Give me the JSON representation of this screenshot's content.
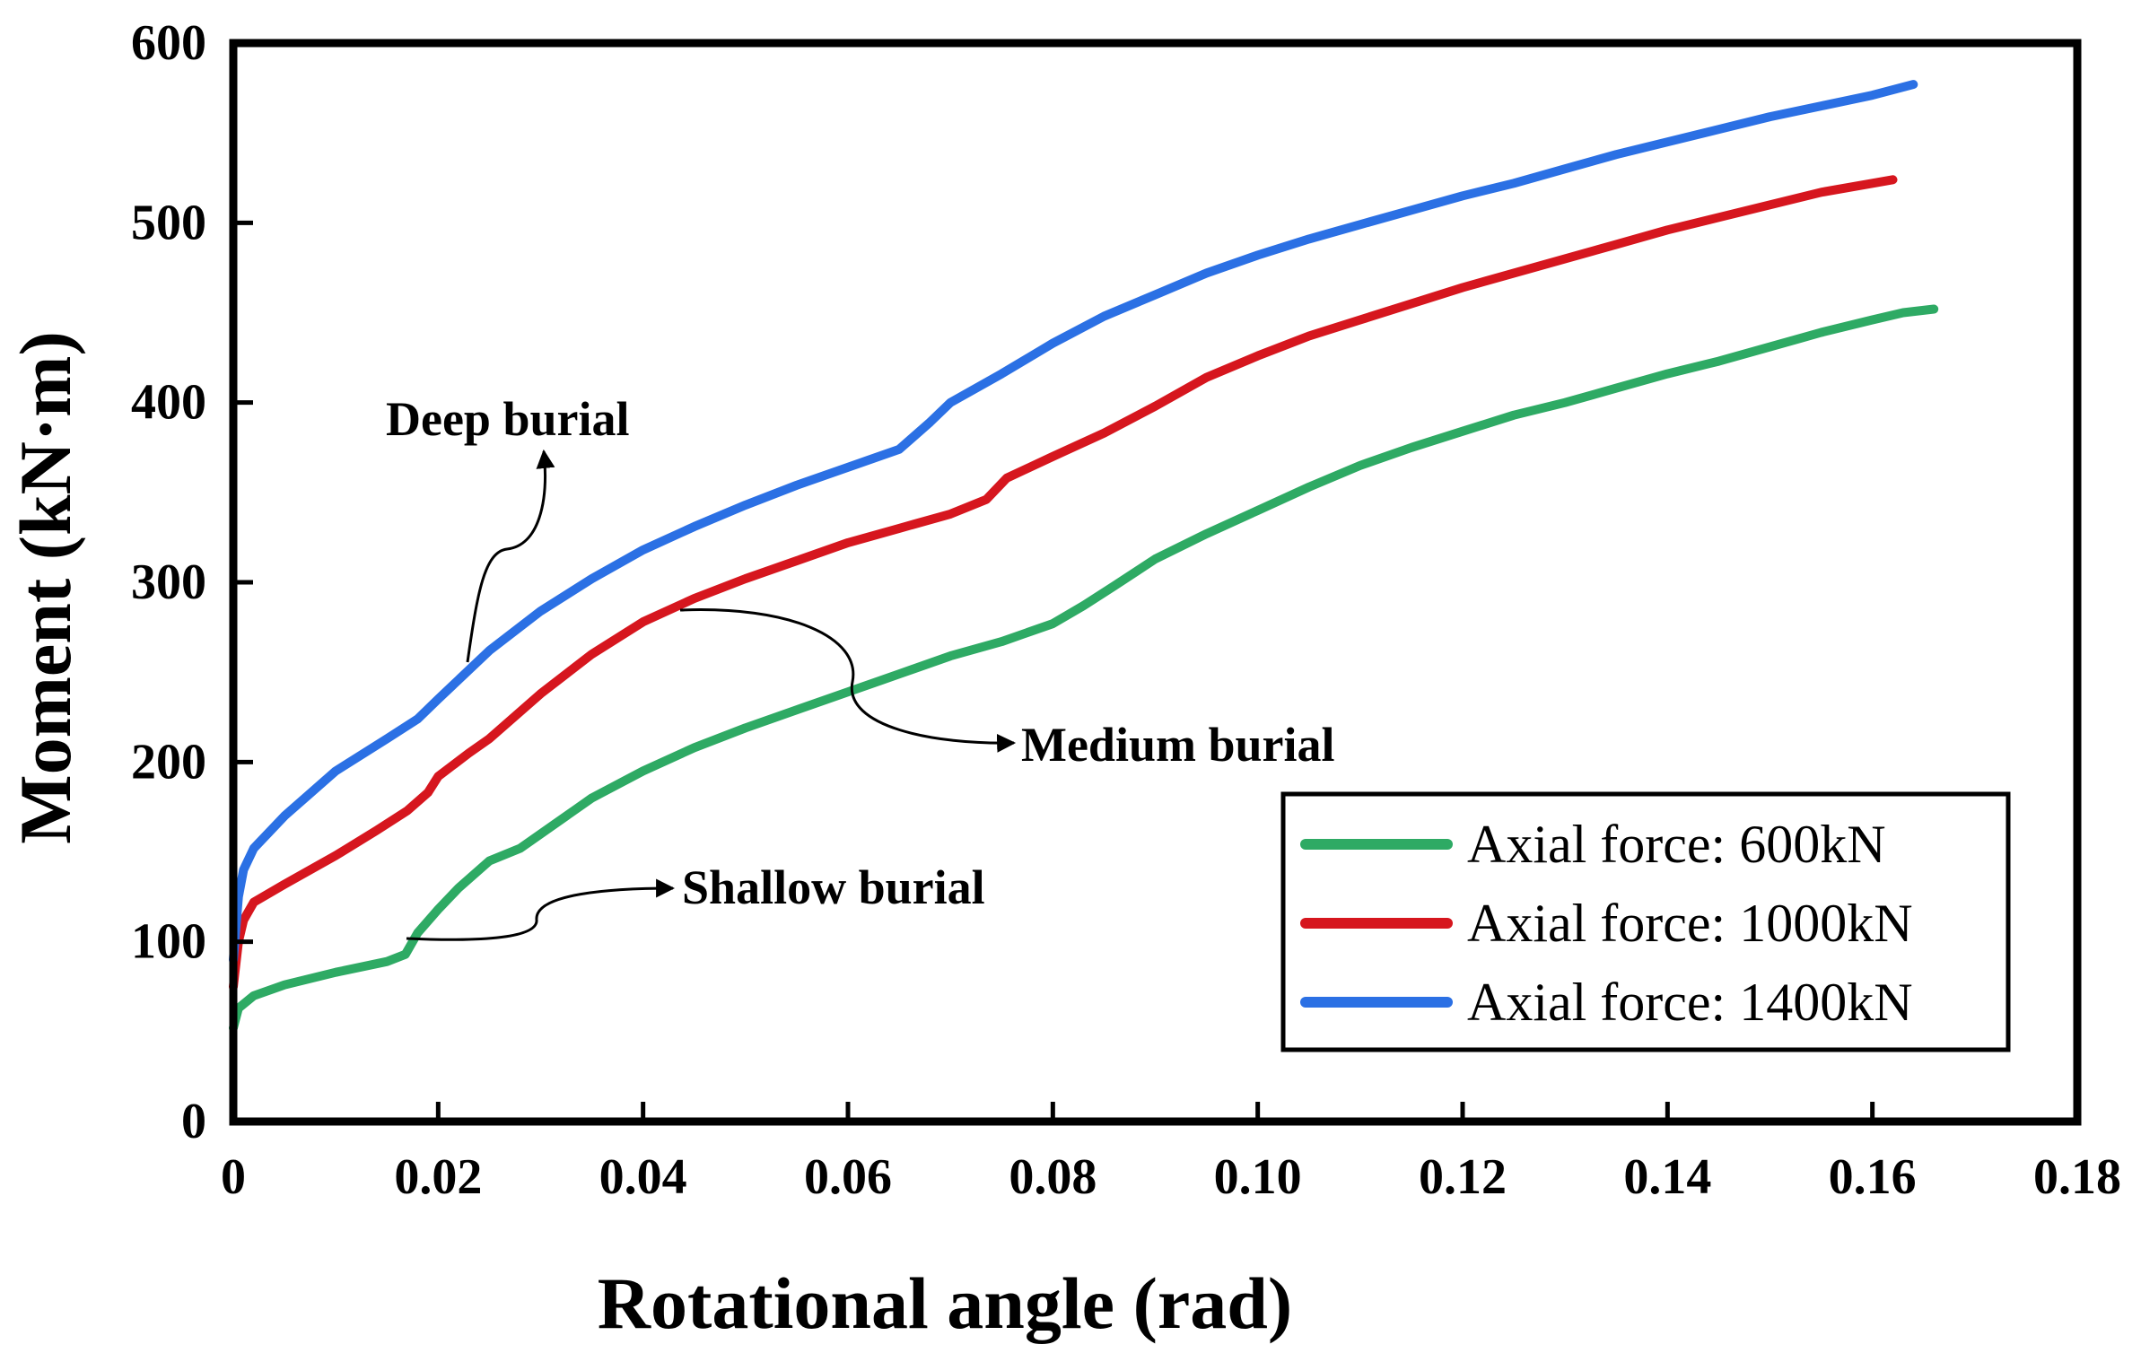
{
  "chart_data": {
    "type": "line",
    "title": "",
    "xlabel": "Rotational angle (rad)",
    "ylabel": "Moment (kN·m)",
    "xlim": [
      0,
      0.18
    ],
    "ylim": [
      0,
      600
    ],
    "xticks": [
      0,
      0.02,
      0.04,
      0.06,
      0.08,
      0.1,
      0.12,
      0.14,
      0.16,
      0.18
    ],
    "xtick_labels": [
      "0",
      "0.02",
      "0.04",
      "0.06",
      "0.08",
      "0.10",
      "0.12",
      "0.14",
      "0.16",
      "0.18"
    ],
    "yticks": [
      0,
      100,
      200,
      300,
      400,
      500,
      600
    ],
    "ytick_labels": [
      "0",
      "100",
      "200",
      "300",
      "400",
      "500",
      "600"
    ],
    "grid": false,
    "legend_position": "bottom-right",
    "series": [
      {
        "name": "Axial force: 600kN",
        "color": "#2EAA64",
        "x": [
          0,
          0.0005,
          0.002,
          0.005,
          0.01,
          0.015,
          0.0168,
          0.018,
          0.02,
          0.022,
          0.025,
          0.028,
          0.03,
          0.035,
          0.04,
          0.045,
          0.05,
          0.055,
          0.06,
          0.065,
          0.07,
          0.075,
          0.08,
          0.083,
          0.086,
          0.09,
          0.095,
          0.1,
          0.105,
          0.11,
          0.115,
          0.12,
          0.125,
          0.13,
          0.135,
          0.14,
          0.145,
          0.15,
          0.155,
          0.16,
          0.163,
          0.166
        ],
        "y": [
          52,
          63,
          70,
          76,
          83,
          89,
          93,
          105,
          118,
          130,
          145,
          152,
          160,
          180,
          195,
          208,
          219,
          229,
          239,
          249,
          259,
          267,
          277,
          287,
          298,
          313,
          327,
          340,
          353,
          365,
          375,
          384,
          393,
          400,
          408,
          416,
          423,
          431,
          439,
          446,
          450,
          452
        ]
      },
      {
        "name": "Axial force: 1000kN",
        "color": "#D6161E",
        "x": [
          0,
          0.0005,
          0.001,
          0.002,
          0.005,
          0.01,
          0.014,
          0.017,
          0.019,
          0.02,
          0.023,
          0.025,
          0.03,
          0.035,
          0.04,
          0.045,
          0.05,
          0.055,
          0.06,
          0.065,
          0.07,
          0.0735,
          0.0755,
          0.08,
          0.085,
          0.09,
          0.095,
          0.1,
          0.105,
          0.11,
          0.115,
          0.12,
          0.125,
          0.13,
          0.135,
          0.14,
          0.145,
          0.15,
          0.155,
          0.16,
          0.162
        ],
        "y": [
          75,
          100,
          112,
          122,
          132,
          148,
          162,
          173,
          183,
          192,
          205,
          213,
          238,
          260,
          278,
          291,
          302,
          312,
          322,
          330,
          338,
          346,
          358,
          370,
          383,
          398,
          414,
          426,
          437,
          446,
          455,
          464,
          472,
          480,
          488,
          496,
          503,
          510,
          517,
          522,
          524
        ]
      },
      {
        "name": "Axial force: 1400kN",
        "color": "#2B70E4",
        "x": [
          0,
          0.0005,
          0.001,
          0.002,
          0.005,
          0.01,
          0.015,
          0.018,
          0.02,
          0.025,
          0.03,
          0.035,
          0.04,
          0.045,
          0.05,
          0.055,
          0.06,
          0.065,
          0.068,
          0.07,
          0.075,
          0.08,
          0.085,
          0.09,
          0.095,
          0.1,
          0.105,
          0.11,
          0.115,
          0.12,
          0.125,
          0.13,
          0.135,
          0.14,
          0.145,
          0.15,
          0.155,
          0.16,
          0.164
        ],
        "y": [
          90,
          125,
          140,
          152,
          170,
          195,
          213,
          224,
          235,
          262,
          284,
          302,
          318,
          331,
          343,
          354,
          364,
          374,
          389,
          400,
          416,
          433,
          448,
          460,
          472,
          482,
          491,
          499,
          507,
          515,
          522,
          530,
          538,
          545,
          552,
          559,
          565,
          571,
          577
        ]
      }
    ],
    "annotations": [
      {
        "text": "Deep burial",
        "target_series": "Axial force: 1400kN"
      },
      {
        "text": "Medium burial",
        "target_series": "Axial force: 1000kN"
      },
      {
        "text": "Shallow burial",
        "target_series": "Axial force: 600kN"
      }
    ]
  }
}
